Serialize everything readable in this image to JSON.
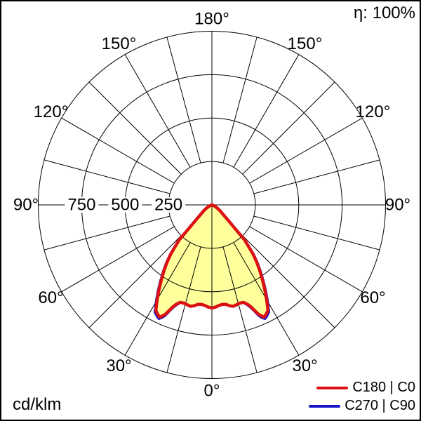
{
  "header": {
    "eta_label": "η: 100%"
  },
  "footer": {
    "unit_label": "cd/klm"
  },
  "legend": {
    "items": [
      {
        "label": "C180 | C0",
        "color": "#dc1212"
      },
      {
        "label": "C270 | C90",
        "color": "#1616c8"
      }
    ]
  },
  "chart_data": {
    "type": "line",
    "subtype": "polar-luminous-intensity-distribution",
    "title": "",
    "units": "cd/klm",
    "efficiency_eta_percent": 100,
    "angle_tick_step_deg": 15,
    "angle_labels_deg": [
      0,
      30,
      60,
      90,
      120,
      150,
      180
    ],
    "radial_ticks": [
      250,
      500,
      750,
      1000
    ],
    "radial_tick_labels_shown": [
      "250",
      "500",
      "750"
    ],
    "rlim": [
      0,
      1000
    ],
    "grid": true,
    "legend_position": "bottom-right",
    "fill_color": "#ffff9c",
    "symmetric_planes": true,
    "series": [
      {
        "name": "C180 | C0",
        "color": "#dc1212",
        "stroke_width": 4.5,
        "angles_deg": [
          0,
          2,
          4,
          6,
          8,
          10,
          12,
          14,
          16,
          18,
          19,
          20,
          21,
          22,
          23,
          24,
          25,
          26,
          28,
          30,
          32,
          34,
          36,
          38,
          40,
          41,
          43,
          45,
          48,
          51,
          54,
          57,
          60,
          65,
          70,
          75,
          80,
          85,
          90
        ],
        "values": [
          594,
          589,
          581,
          576,
          578,
          590,
          597,
          592,
          588,
          590,
          600,
          612,
          630,
          655,
          683,
          700,
          712,
          706,
          688,
          630,
          575,
          520,
          470,
          420,
          368,
          330,
          278,
          168,
          105,
          74,
          58,
          45,
          32,
          18,
          8,
          3,
          1,
          0,
          0
        ]
      },
      {
        "name": "C270 | C90",
        "color": "#1616c8",
        "stroke_width": 4,
        "angles_deg": [
          0,
          2,
          4,
          6,
          8,
          10,
          12,
          14,
          16,
          18,
          19,
          20,
          21,
          22,
          23,
          24,
          25,
          26,
          28,
          30,
          32,
          34,
          36,
          38,
          40,
          41,
          43,
          45,
          48,
          51,
          54,
          57,
          60,
          65,
          70,
          75,
          80,
          85,
          90
        ],
        "values": [
          594,
          589,
          581,
          576,
          578,
          590,
          597,
          592,
          588,
          591,
          603,
          617,
          636,
          662,
          692,
          710,
          722,
          716,
          698,
          640,
          584,
          528,
          477,
          425,
          372,
          334,
          280,
          170,
          106,
          74,
          58,
          45,
          32,
          18,
          8,
          3,
          1,
          0,
          0
        ]
      }
    ]
  }
}
